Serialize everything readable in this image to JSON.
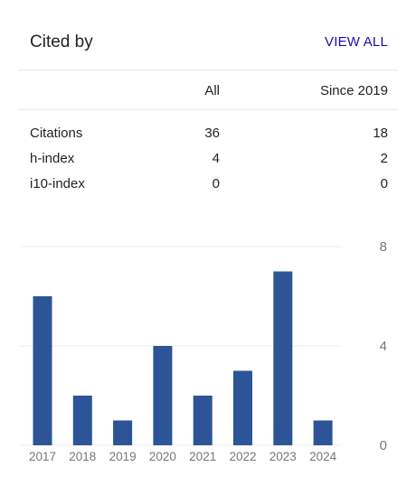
{
  "header": {
    "title": "Cited by",
    "view_all": "VIEW ALL"
  },
  "table": {
    "columns": [
      "All",
      "Since 2019"
    ],
    "rows": [
      {
        "label": "Citations",
        "all": "36",
        "since": "18"
      },
      {
        "label": "h-index",
        "all": "4",
        "since": "2"
      },
      {
        "label": "i10-index",
        "all": "0",
        "since": "0"
      }
    ]
  },
  "chart_data": {
    "type": "bar",
    "categories": [
      "2017",
      "2018",
      "2019",
      "2020",
      "2021",
      "2022",
      "2023",
      "2024"
    ],
    "values": [
      6,
      2,
      1,
      4,
      2,
      3,
      7,
      1
    ],
    "yticks": [
      "0",
      "4",
      "8"
    ],
    "ylim": [
      0,
      8
    ],
    "grid": true,
    "bar_color": "#2d5497"
  }
}
